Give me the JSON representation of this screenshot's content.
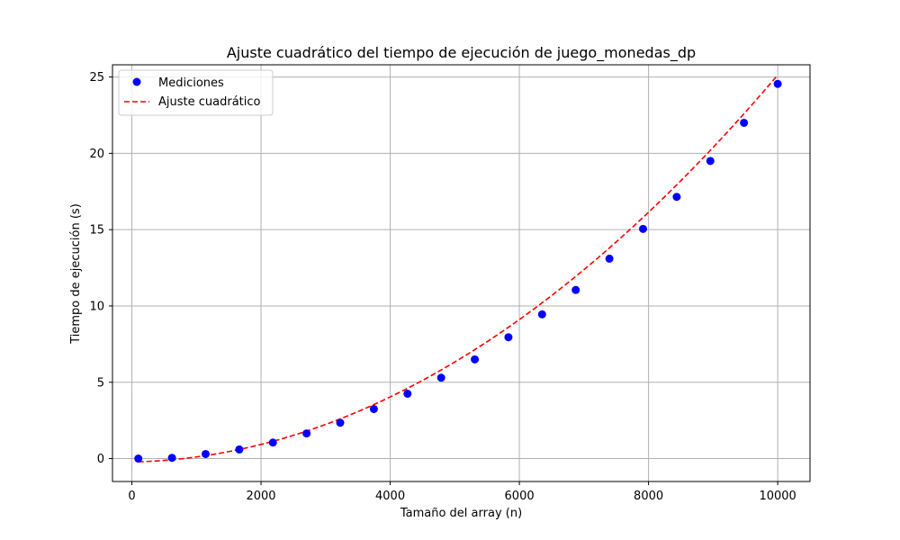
{
  "chart_data": {
    "type": "scatter",
    "title": "Ajuste cuadrático del tiempo de ejecución de juego_monedas_dp",
    "xlabel": "Tamaño del array (n)",
    "ylabel": "Tiempo de ejecución (s)",
    "xlim": [
      -300,
      10500
    ],
    "ylim": [
      -1.5,
      25.8
    ],
    "xticks": [
      0,
      2000,
      4000,
      6000,
      8000,
      10000
    ],
    "yticks": [
      0,
      5,
      10,
      15,
      20,
      25
    ],
    "grid": true,
    "legend_position": "upper-left",
    "series": [
      {
        "name": "Mediciones",
        "kind": "markers",
        "color": "#0000ff",
        "x": [
          100,
          621,
          1142,
          1663,
          2184,
          2705,
          3226,
          3747,
          4268,
          4789,
          5310,
          5831,
          6352,
          6873,
          7394,
          7915,
          8436,
          8957,
          9478,
          10000
        ],
        "y": [
          0.0,
          0.05,
          0.3,
          0.6,
          1.05,
          1.65,
          2.35,
          3.25,
          4.25,
          5.3,
          6.5,
          7.95,
          9.45,
          11.05,
          13.1,
          15.05,
          17.15,
          19.5,
          22.0,
          24.55
        ]
      },
      {
        "name": "Ajuste cuadrático",
        "kind": "dashed-line",
        "color": "#ff0000",
        "quadratic_coefficients": [
          2.45e-07,
          8.5e-05,
          -0.22
        ]
      }
    ]
  }
}
